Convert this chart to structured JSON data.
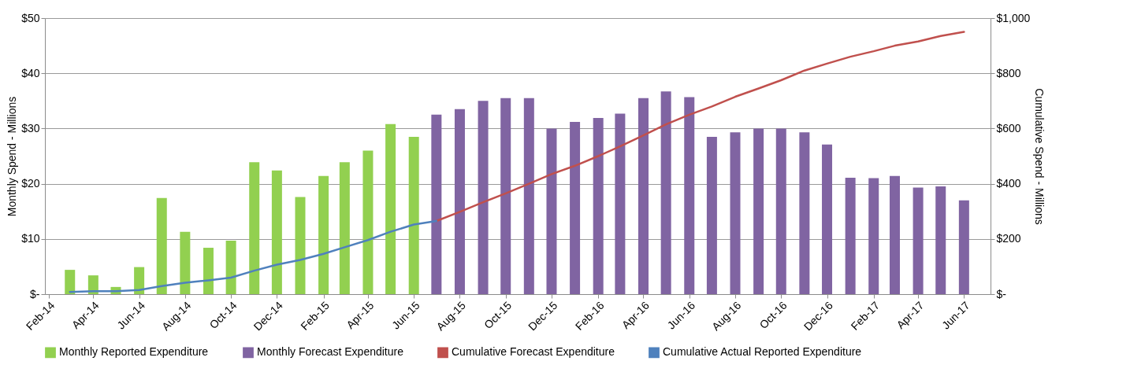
{
  "chart_data": {
    "type": "bar",
    "ylabel": "Monthly Spend - Millions",
    "y2label": "Cumulative Spend - Millions",
    "xlim": [
      "2014-02",
      "2017-07"
    ],
    "xticks": [
      {
        "value": "2014-02",
        "label": "Feb-14"
      },
      {
        "value": "2014-04",
        "label": "Apr-14"
      },
      {
        "value": "2014-06",
        "label": "Jun-14"
      },
      {
        "value": "2014-08",
        "label": "Aug-14"
      },
      {
        "value": "2014-10",
        "label": "Oct-14"
      },
      {
        "value": "2014-12",
        "label": "Dec-14"
      },
      {
        "value": "2015-02",
        "label": "Feb-15"
      },
      {
        "value": "2015-04",
        "label": "Apr-15"
      },
      {
        "value": "2015-06",
        "label": "Jun-15"
      },
      {
        "value": "2015-08",
        "label": "Aug-15"
      },
      {
        "value": "2015-10",
        "label": "Oct-15"
      },
      {
        "value": "2015-12",
        "label": "Dec-15"
      },
      {
        "value": "2016-02",
        "label": "Feb-16"
      },
      {
        "value": "2016-04",
        "label": "Apr-16"
      },
      {
        "value": "2016-06",
        "label": "Jun-16"
      },
      {
        "value": "2016-08",
        "label": "Aug-16"
      },
      {
        "value": "2016-10",
        "label": "Oct-16"
      },
      {
        "value": "2016-12",
        "label": "Dec-16"
      },
      {
        "value": "2017-02",
        "label": "Feb-17"
      },
      {
        "value": "2017-04",
        "label": "Apr-17"
      },
      {
        "value": "2017-06",
        "label": "Jun-17"
      }
    ],
    "ylim": [
      0,
      50
    ],
    "yticks": [
      {
        "value": 0,
        "label": "$-"
      },
      {
        "value": 10,
        "label": "$10"
      },
      {
        "value": 20,
        "label": "$20"
      },
      {
        "value": 30,
        "label": "$30"
      },
      {
        "value": 40,
        "label": "$40"
      },
      {
        "value": 50,
        "label": "$50"
      }
    ],
    "y2lim": [
      0,
      1000
    ],
    "y2ticks": [
      {
        "value": 0,
        "label": "$-"
      },
      {
        "value": 200,
        "label": "$200"
      },
      {
        "value": 400,
        "label": "$400"
      },
      {
        "value": 600,
        "label": "$600"
      },
      {
        "value": 800,
        "label": "$800"
      },
      {
        "value": 1000,
        "label": "$1,000"
      }
    ],
    "grid": "y",
    "legend": "bottom",
    "series": [
      {
        "name": "Monthly Reported Expenditure",
        "type": "bar",
        "color": "#92d050",
        "x": [
          "2014-03",
          "2014-04",
          "2014-05",
          "2014-06",
          "2014-07",
          "2014-08",
          "2014-09",
          "2014-10",
          "2014-11",
          "2014-12",
          "2015-01",
          "2015-02",
          "2015-03",
          "2015-04",
          "2015-05",
          "2015-06"
        ],
        "values": [
          4.4,
          3.4,
          1.3,
          4.9,
          17.4,
          11.3,
          8.4,
          9.7,
          23.9,
          22.4,
          17.6,
          21.4,
          23.9,
          26.0,
          30.8,
          28.5
        ]
      },
      {
        "name": "Monthly Forecast Expenditure",
        "type": "bar",
        "color": "#8064a2",
        "x": [
          "2015-07",
          "2015-08",
          "2015-09",
          "2015-10",
          "2015-11",
          "2015-12",
          "2016-01",
          "2016-02",
          "2016-03",
          "2016-04",
          "2016-05",
          "2016-06",
          "2016-07",
          "2016-08",
          "2016-09",
          "2016-10",
          "2016-11",
          "2016-12",
          "2017-01",
          "2017-02",
          "2017-03",
          "2017-04",
          "2017-05",
          "2017-06"
        ],
        "values": [
          32.5,
          33.5,
          35.0,
          35.5,
          35.5,
          30.0,
          31.2,
          31.9,
          32.7,
          35.5,
          36.7,
          35.7,
          28.5,
          29.3,
          30.0,
          30.0,
          29.3,
          27.1,
          21.1,
          21.0,
          21.4,
          19.3,
          19.5,
          17.0
        ]
      },
      {
        "name": "Cumulative Forecast Expenditure",
        "type": "line",
        "axis": "y2",
        "color": "#c0504d",
        "x": [
          "2015-07",
          "2015-08",
          "2015-09",
          "2015-10",
          "2015-11",
          "2015-12",
          "2016-01",
          "2016-02",
          "2016-03",
          "2016-04",
          "2016-05",
          "2016-06",
          "2016-07",
          "2016-08",
          "2016-09",
          "2016-10",
          "2016-11",
          "2016-12",
          "2017-01",
          "2017-02",
          "2017-03",
          "2017-04",
          "2017-05",
          "2017-06"
        ],
        "values": [
          265,
          298,
          333,
          365,
          400,
          435,
          465,
          500,
          535,
          575,
          615,
          650,
          680,
          715,
          745,
          775,
          810,
          835,
          860,
          880,
          900,
          915,
          935,
          950
        ]
      },
      {
        "name": "Cumulative Actual Reported Expenditure",
        "type": "line",
        "axis": "y2",
        "color": "#4f81bd",
        "x": [
          "2014-03",
          "2014-04",
          "2014-05",
          "2014-06",
          "2014-07",
          "2014-08",
          "2014-09",
          "2014-10",
          "2014-11",
          "2014-12",
          "2015-01",
          "2015-02",
          "2015-03",
          "2015-04",
          "2015-05",
          "2015-06",
          "2015-07"
        ],
        "values": [
          8,
          11,
          11,
          15,
          29,
          41,
          50,
          60,
          85,
          107,
          124,
          146,
          170,
          196,
          226,
          252,
          265
        ]
      }
    ]
  }
}
